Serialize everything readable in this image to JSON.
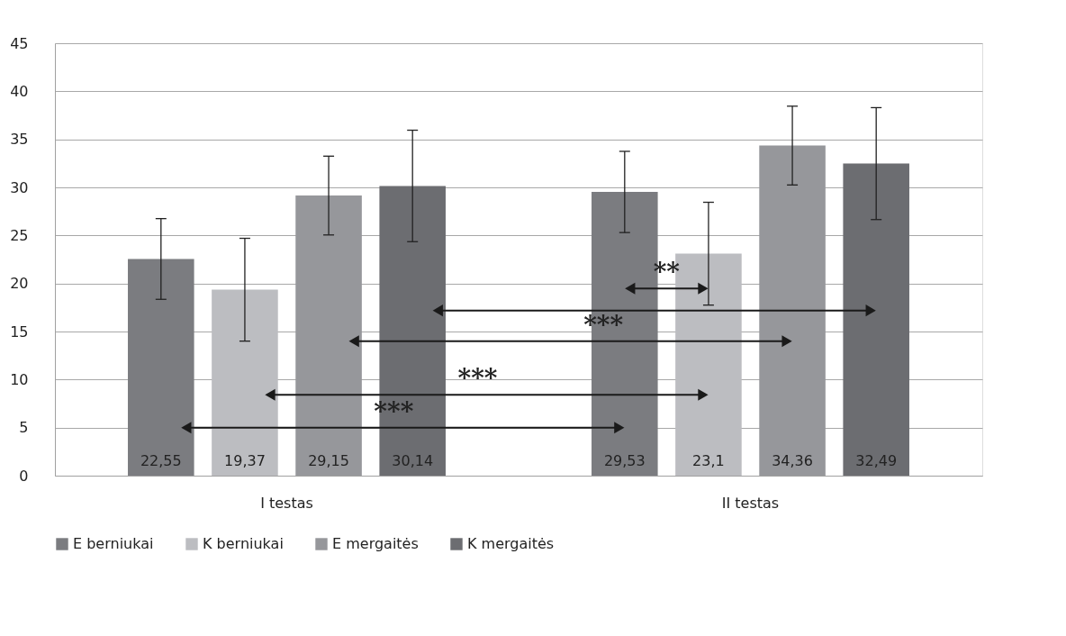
{
  "chart_data": {
    "type": "bar",
    "categories": [
      "I testas",
      "II testas"
    ],
    "series": [
      {
        "name": "E berniukai",
        "color": "#7b7c80",
        "values": [
          22.55,
          29.53
        ],
        "errors": [
          [
            18.35,
            26.75
          ],
          [
            25.3,
            33.75
          ]
        ],
        "value_labels": [
          "22,55",
          "29,53"
        ]
      },
      {
        "name": "K berniukai",
        "color": "#bcbdc1",
        "values": [
          19.37,
          23.1
        ],
        "errors": [
          [
            14.0,
            24.7
          ],
          [
            17.75,
            28.45
          ]
        ],
        "value_labels": [
          "19,37",
          "23,1"
        ]
      },
      {
        "name": "E mergaitės",
        "color": "#96979b",
        "values": [
          29.15,
          34.36
        ],
        "errors": [
          [
            25.05,
            33.25
          ],
          [
            30.25,
            38.45
          ]
        ],
        "value_labels": [
          "29,15",
          "34,36"
        ]
      },
      {
        "name": "K mergaitės",
        "color": "#6c6d71",
        "values": [
          30.14,
          32.49
        ],
        "errors": [
          [
            24.35,
            35.95
          ],
          [
            26.65,
            38.3
          ]
        ],
        "value_labels": [
          "30,14",
          "32,49"
        ]
      }
    ],
    "ylim": [
      0,
      45
    ],
    "yticks": [
      0,
      5,
      10,
      15,
      20,
      25,
      30,
      35,
      40,
      45
    ],
    "grid": "y",
    "legend": "bottom",
    "annotations": [
      "**",
      "***",
      "***",
      "***"
    ]
  }
}
